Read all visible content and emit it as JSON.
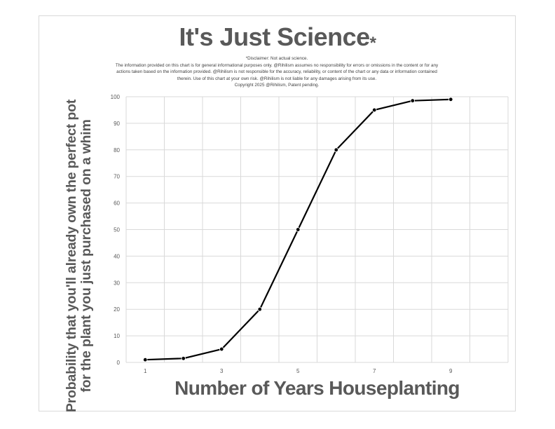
{
  "chart_data": {
    "type": "line",
    "title": "It's Just Science",
    "title_mark": "*",
    "disclaimer": [
      "*Disclaimer: Not actual science.",
      "The information provided on this chart is for general informational purposes only. @Rihilism assumes no responsibility for errors or omissions in the content or for any",
      "actions taken based on the information provided. @Rihilism is not responsible for the accuracy, reliability, or content of the chart or any data or information contained",
      "therein. Use of this chart at your own risk. @Rihilism is not liable for any damages arising from its use.",
      "Copyright 2025 @Rihilism, Patent pending."
    ],
    "xlabel": "Number of Years Houseplanting",
    "ylabel": "Probability that you'll already own the perfect pot for the plant you just purchased on a whim",
    "x": [
      1,
      2,
      3,
      4,
      5,
      6,
      7,
      8,
      9
    ],
    "series": [
      {
        "values": [
          1,
          1.5,
          5,
          20,
          50,
          80,
          95,
          98.5,
          99
        ]
      }
    ],
    "xlim": [
      0.5,
      10.5
    ],
    "ylim": [
      0,
      100
    ],
    "x_ticks": [
      "1",
      "3",
      "5",
      "7",
      "9"
    ],
    "y_ticks": [
      "0",
      "10",
      "20",
      "30",
      "40",
      "50",
      "60",
      "70",
      "80",
      "90",
      "100"
    ],
    "grid": true,
    "line_color": "#000000",
    "grid_color": "#d9d9d9"
  }
}
